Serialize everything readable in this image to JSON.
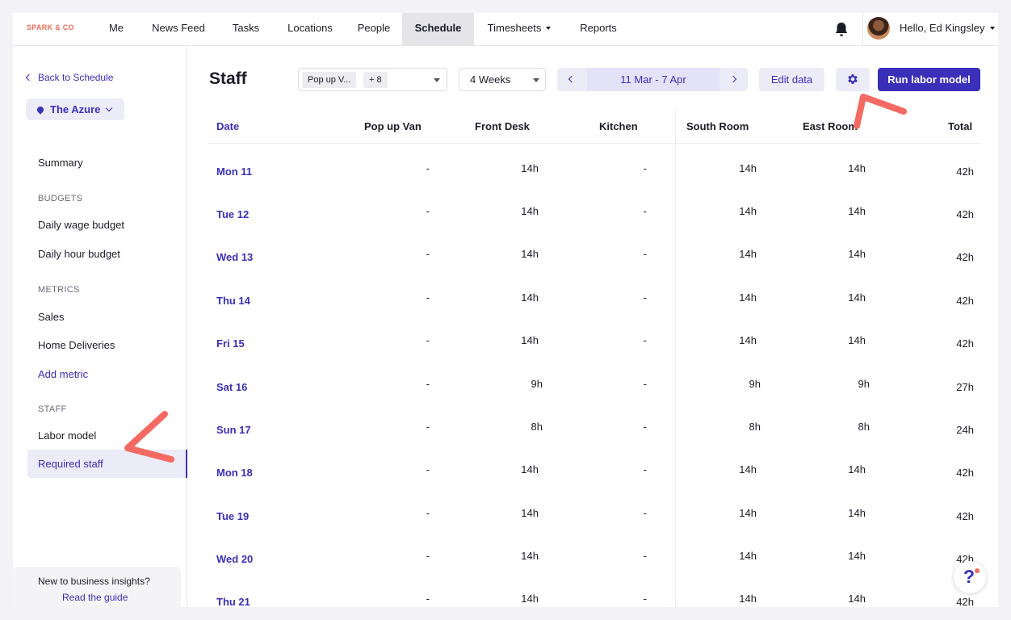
{
  "brand": {
    "logo_text": "SPARK & CO",
    "accent": "#3a2fb8",
    "logo_color": "#f26b5b"
  },
  "topnav": {
    "items": [
      {
        "label": "Me"
      },
      {
        "label": "News Feed"
      },
      {
        "label": "Tasks"
      },
      {
        "label": "Locations"
      },
      {
        "label": "People"
      },
      {
        "label": "Schedule",
        "active": true
      },
      {
        "label": "Timesheets",
        "has_dropdown": true
      },
      {
        "label": "Reports"
      }
    ],
    "notifications_icon": "bell-icon",
    "greeting": "Hello, Ed Kingsley"
  },
  "sidebar": {
    "back_label": "Back to Schedule",
    "location_label": "The Azure",
    "summary": "Summary",
    "sections": {
      "budgets": "BUDGETS",
      "metrics": "METRICS",
      "staff": "STAFF"
    },
    "budget_items": [
      "Daily wage budget",
      "Daily hour budget"
    ],
    "metric_items": [
      "Sales",
      "Home Deliveries"
    ],
    "add_metric": "Add metric",
    "staff_items": [
      "Labor model",
      "Required staff"
    ],
    "active_item": "Required staff",
    "guide_question": "New to business insights?",
    "guide_link": "Read the guide"
  },
  "main": {
    "title": "Staff",
    "filter": {
      "chip": "Pop up V...",
      "more_chip": "+ 8"
    },
    "period_select": "4 Weeks",
    "date_range": "11 Mar - 7 Apr",
    "edit_button": "Edit data",
    "settings_icon": "gear-icon",
    "run_button": "Run labor model"
  },
  "table": {
    "columns": [
      "Date",
      "Pop up Van",
      "Front Desk",
      "Kitchen",
      "South Room",
      "East Room",
      "Total"
    ],
    "rows": [
      {
        "date": "Mon 11",
        "values": [
          "-",
          "14h",
          "-",
          "14h",
          "14h"
        ],
        "total": "42h"
      },
      {
        "date": "Tue 12",
        "values": [
          "-",
          "14h",
          "-",
          "14h",
          "14h"
        ],
        "total": "42h"
      },
      {
        "date": "Wed 13",
        "values": [
          "-",
          "14h",
          "-",
          "14h",
          "14h"
        ],
        "total": "42h"
      },
      {
        "date": "Thu 14",
        "values": [
          "-",
          "14h",
          "-",
          "14h",
          "14h"
        ],
        "total": "42h"
      },
      {
        "date": "Fri 15",
        "values": [
          "-",
          "14h",
          "-",
          "14h",
          "14h"
        ],
        "total": "42h"
      },
      {
        "date": "Sat 16",
        "values": [
          "-",
          "9h",
          "-",
          "9h",
          "9h"
        ],
        "total": "27h"
      },
      {
        "date": "Sun 17",
        "values": [
          "-",
          "8h",
          "-",
          "8h",
          "8h"
        ],
        "total": "24h"
      },
      {
        "date": "Mon 18",
        "values": [
          "-",
          "14h",
          "-",
          "14h",
          "14h"
        ],
        "total": "42h"
      },
      {
        "date": "Tue 19",
        "values": [
          "-",
          "14h",
          "-",
          "14h",
          "14h"
        ],
        "total": "42h"
      },
      {
        "date": "Wed 20",
        "values": [
          "-",
          "14h",
          "-",
          "14h",
          "14h"
        ],
        "total": "42h"
      },
      {
        "date": "Thu 21",
        "values": [
          "-",
          "14h",
          "-",
          "14h",
          "14h"
        ],
        "total": "42h"
      }
    ]
  },
  "help": {
    "label": "?",
    "icon": "help-icon"
  }
}
